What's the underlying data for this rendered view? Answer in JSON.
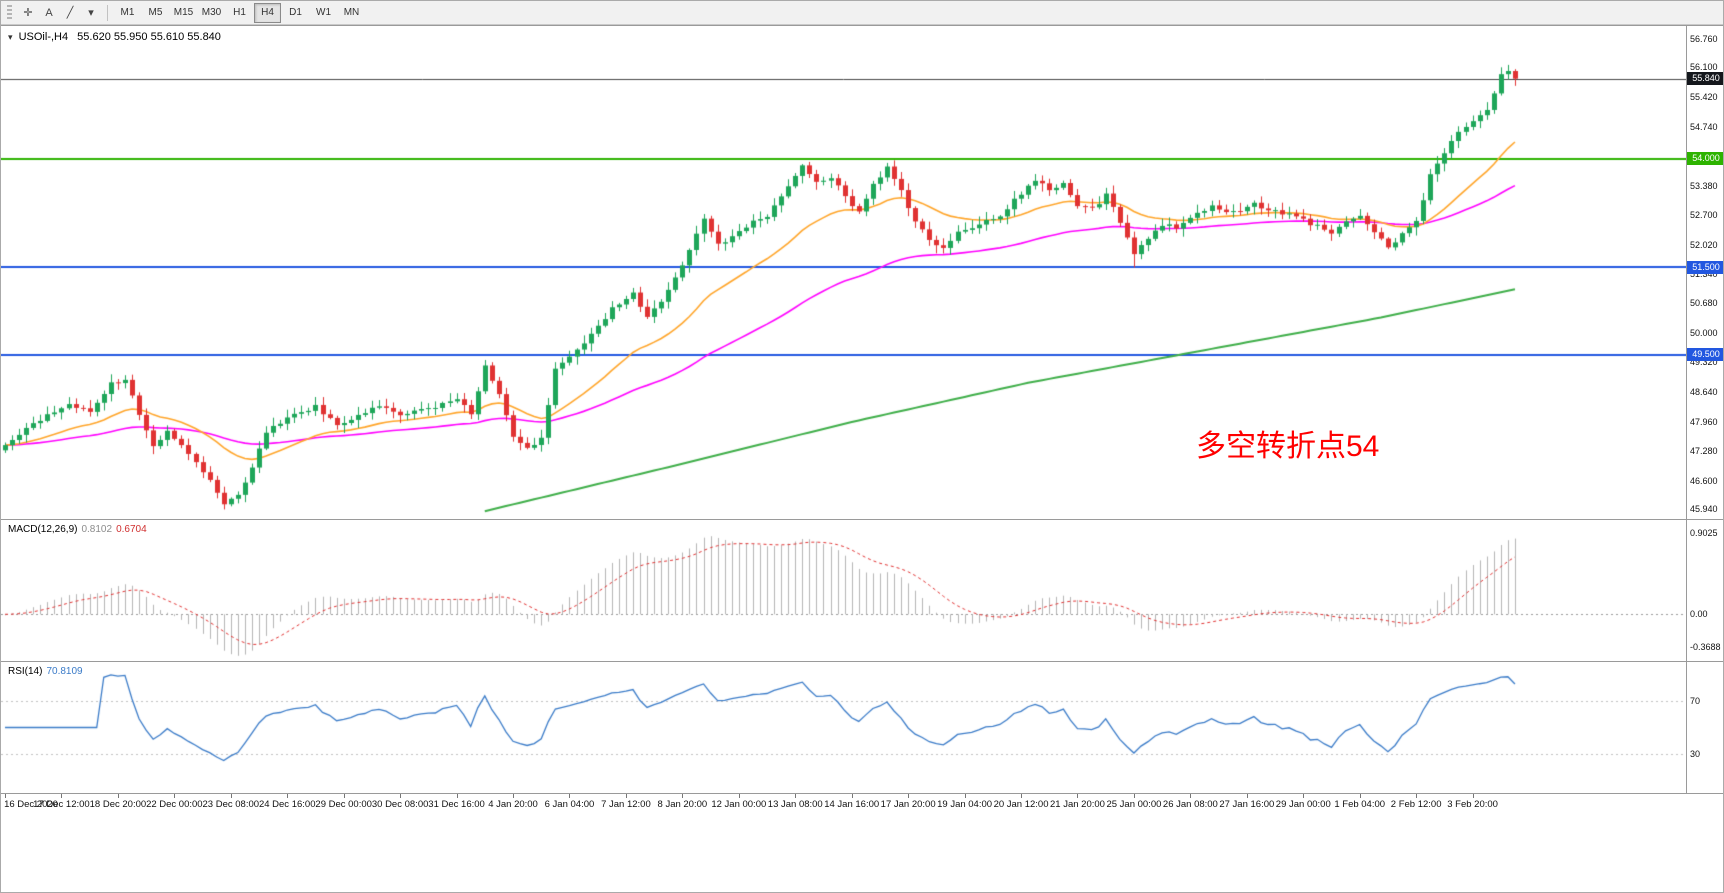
{
  "toolbar": {
    "tools": [
      {
        "name": "crosshair-tool",
        "glyph": "✛"
      },
      {
        "name": "text-label-tool",
        "glyph": "A"
      },
      {
        "name": "shapes-tool",
        "glyph": "╱"
      },
      {
        "name": "shapes-dropdown",
        "glyph": "▾"
      }
    ],
    "timeframes": [
      {
        "label": "M1"
      },
      {
        "label": "M5"
      },
      {
        "label": "M15"
      },
      {
        "label": "M30"
      },
      {
        "label": "H1"
      },
      {
        "label": "H4"
      },
      {
        "label": "D1"
      },
      {
        "label": "W1"
      },
      {
        "label": "MN"
      }
    ],
    "active_timeframe": "H4"
  },
  "chart": {
    "symbol_arrow": "▾",
    "symbol_label": "USOil-,H4",
    "ohlc_text": "55.620 55.950 55.610 55.840",
    "annotation": {
      "text": "多空转折点54",
      "color": "#ff0000"
    },
    "current": {
      "v": 55.84,
      "label": "55.840",
      "line_color": "#444444",
      "badge_bg": "#14171c"
    },
    "levels": [
      {
        "v": 54.0,
        "label": "54.000",
        "color": "#2db300"
      },
      {
        "v": 51.5,
        "label": "51.500",
        "color": "#2257e0"
      },
      {
        "v": 49.5,
        "label": "49.500",
        "color": "#2257e0"
      }
    ],
    "y_ticks": [
      {
        "v": 56.76,
        "label": "56.760"
      },
      {
        "v": 56.1,
        "label": "56.100"
      },
      {
        "v": 55.42,
        "label": "55.420"
      },
      {
        "v": 54.74,
        "label": "54.740"
      },
      {
        "v": 53.38,
        "label": "53.380"
      },
      {
        "v": 52.7,
        "label": "52.700"
      },
      {
        "v": 52.02,
        "label": "52.020"
      },
      {
        "v": 51.34,
        "label": "51.340"
      },
      {
        "v": 50.68,
        "label": "50.680"
      },
      {
        "v": 50.0,
        "label": "50.000"
      },
      {
        "v": 49.32,
        "label": "49.320"
      },
      {
        "v": 48.64,
        "label": "48.640"
      },
      {
        "v": 47.96,
        "label": "47.960"
      },
      {
        "v": 47.28,
        "label": "47.280"
      },
      {
        "v": 46.6,
        "label": "46.600"
      },
      {
        "v": 45.94,
        "label": "45.940"
      }
    ]
  },
  "macd": {
    "name": "MACD(12,26,9)",
    "value_main": "0.8102",
    "value_signal": "0.6704",
    "range": [
      -0.52,
      1.05
    ],
    "ticks": [
      {
        "v": 0.9025,
        "label": "0.9025"
      },
      {
        "v": 0,
        "label": "0.00"
      },
      {
        "v": -0.3688,
        "label": "-0.3688"
      }
    ],
    "bar_color": "#b4b4b4",
    "signal_color": "#e03030"
  },
  "rsi": {
    "name": "RSI(14)",
    "value": "70.8109",
    "range": [
      0,
      100
    ],
    "levels": [
      {
        "v": 70,
        "label": "70"
      },
      {
        "v": 30,
        "label": "30"
      }
    ],
    "line_color": "#3a7bc8",
    "level_color": "#c0c0c0"
  },
  "time_axis": {
    "step_bars": 8,
    "labels": [
      "16 Dec 2020",
      "17 Dec 12:00",
      "18 Dec 20:00",
      "22 Dec 00:00",
      "23 Dec 08:00",
      "24 Dec 16:00",
      "29 Dec 00:00",
      "30 Dec 08:00",
      "31 Dec 16:00",
      "4 Jan 20:00",
      "6 Jan 04:00",
      "7 Jan 12:00",
      "8 Jan 20:00",
      "12 Jan 00:00",
      "13 Jan 08:00",
      "14 Jan 16:00",
      "17 Jan 20:00",
      "19 Jan 04:00",
      "20 Jan 12:00",
      "21 Jan 20:00",
      "25 Jan 00:00",
      "26 Jan 08:00",
      "27 Jan 16:00",
      "29 Jan 00:00",
      "1 Feb 04:00",
      "2 Feb 12:00",
      "3 Feb 20:00"
    ]
  },
  "chart_data": {
    "type": "candlestick",
    "symbol": "USOil-",
    "timeframe": "H4",
    "bars": 215,
    "last_close": 55.84,
    "price_range": [
      45.72,
      57.05
    ],
    "close_anchors": [
      [
        0,
        47.45
      ],
      [
        3,
        47.8
      ],
      [
        6,
        48.1
      ],
      [
        9,
        48.35
      ],
      [
        12,
        48.2
      ],
      [
        15,
        48.85
      ],
      [
        17,
        48.9
      ],
      [
        19,
        48.15
      ],
      [
        21,
        47.35
      ],
      [
        23,
        47.75
      ],
      [
        26,
        47.2
      ],
      [
        29,
        46.6
      ],
      [
        31,
        46.05
      ],
      [
        33,
        46.3
      ],
      [
        35,
        46.9
      ],
      [
        37,
        47.7
      ],
      [
        40,
        48.05
      ],
      [
        44,
        48.3
      ],
      [
        47,
        47.9
      ],
      [
        50,
        48.1
      ],
      [
        53,
        48.3
      ],
      [
        56,
        48.1
      ],
      [
        59,
        48.25
      ],
      [
        62,
        48.35
      ],
      [
        64,
        48.45
      ],
      [
        66,
        48.15
      ],
      [
        68,
        49.25
      ],
      [
        70,
        48.55
      ],
      [
        72,
        47.6
      ],
      [
        74,
        47.35
      ],
      [
        76,
        47.55
      ],
      [
        78,
        49.15
      ],
      [
        80,
        49.5
      ],
      [
        83,
        49.95
      ],
      [
        86,
        50.55
      ],
      [
        89,
        50.9
      ],
      [
        91,
        50.35
      ],
      [
        93,
        50.75
      ],
      [
        96,
        51.55
      ],
      [
        99,
        52.6
      ],
      [
        101,
        52.0
      ],
      [
        103,
        52.2
      ],
      [
        105,
        52.45
      ],
      [
        108,
        52.7
      ],
      [
        111,
        53.35
      ],
      [
        113,
        53.8
      ],
      [
        115,
        53.45
      ],
      [
        117,
        53.6
      ],
      [
        119,
        53.15
      ],
      [
        121,
        52.75
      ],
      [
        123,
        53.4
      ],
      [
        125,
        53.8
      ],
      [
        127,
        53.25
      ],
      [
        129,
        52.55
      ],
      [
        131,
        52.15
      ],
      [
        133,
        51.95
      ],
      [
        135,
        52.3
      ],
      [
        138,
        52.5
      ],
      [
        141,
        52.7
      ],
      [
        144,
        53.2
      ],
      [
        146,
        53.5
      ],
      [
        148,
        53.3
      ],
      [
        150,
        53.45
      ],
      [
        152,
        52.95
      ],
      [
        154,
        52.85
      ],
      [
        156,
        53.15
      ],
      [
        158,
        52.55
      ],
      [
        160,
        51.85
      ],
      [
        162,
        52.2
      ],
      [
        164,
        52.5
      ],
      [
        166,
        52.4
      ],
      [
        168,
        52.65
      ],
      [
        171,
        52.9
      ],
      [
        174,
        52.75
      ],
      [
        177,
        52.95
      ],
      [
        180,
        52.8
      ],
      [
        183,
        52.65
      ],
      [
        186,
        52.45
      ],
      [
        188,
        52.25
      ],
      [
        190,
        52.6
      ],
      [
        192,
        52.7
      ],
      [
        194,
        52.35
      ],
      [
        196,
        51.95
      ],
      [
        198,
        52.3
      ],
      [
        200,
        52.55
      ],
      [
        202,
        53.6
      ],
      [
        204,
        54.15
      ],
      [
        206,
        54.65
      ],
      [
        208,
        54.9
      ],
      [
        210,
        55.15
      ],
      [
        212,
        55.95
      ],
      [
        213,
        56.0
      ],
      [
        214,
        55.84
      ]
    ],
    "wick_overrides": [
      [
        31,
        "l",
        45.94
      ],
      [
        160,
        "l",
        51.5
      ],
      [
        212,
        "h",
        56.1
      ]
    ],
    "ma": {
      "orange_period": 21,
      "magenta_period": 60,
      "green_points": [
        [
          68,
          45.9
        ],
        [
          95,
          46.95
        ],
        [
          120,
          47.95
        ],
        [
          145,
          48.85
        ],
        [
          170,
          49.6
        ],
        [
          195,
          50.35
        ],
        [
          214,
          51.0
        ]
      ]
    },
    "colors": {
      "up": "#1ea659",
      "down": "#e03232",
      "orange": "#ffa52a",
      "magenta": "#ff00ff",
      "green_ma": "#3fae49"
    }
  }
}
